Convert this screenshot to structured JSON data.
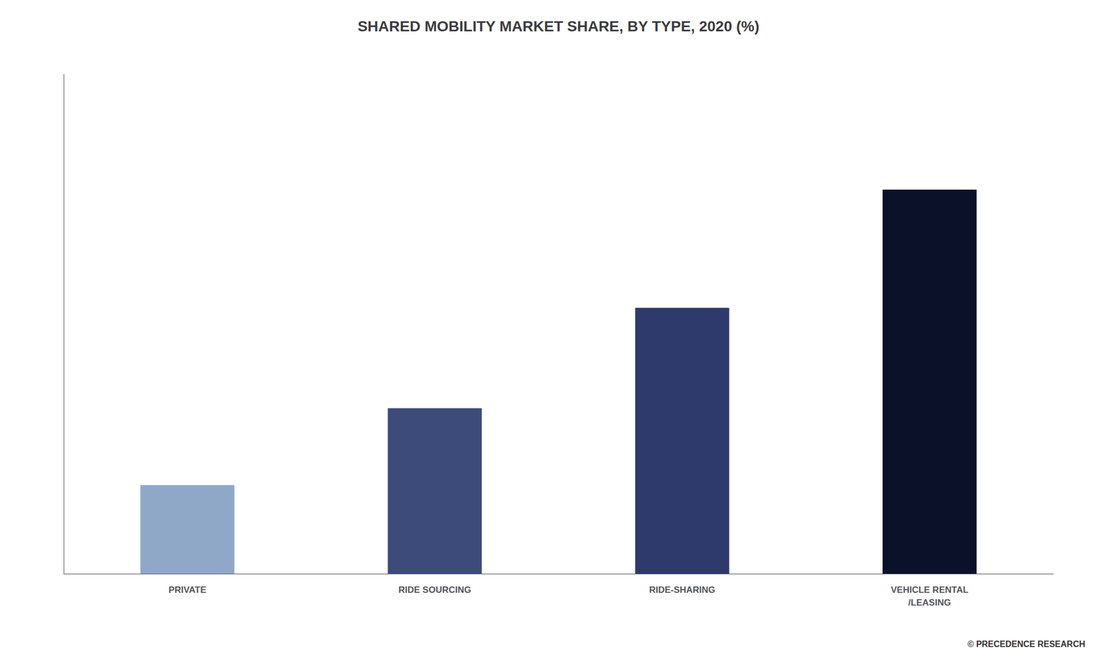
{
  "chart_data": {
    "type": "bar",
    "title": "SHARED MOBILITY MARKET SHARE, BY TYPE, 2020 (%)",
    "categories": [
      "PRIVATE",
      "RIDE SOURCING",
      "RIDE-SHARING",
      "VEHICLE RENTAL\n/LEASING"
    ],
    "values": [
      15,
      28,
      45,
      65
    ],
    "colors": [
      "#8fa8c8",
      "#3d4b7a",
      "#2d3a6b",
      "#0a1128"
    ],
    "ylim": [
      0,
      84.5
    ],
    "grid": false,
    "tick_labels": "x",
    "legend": false,
    "data_labels": false,
    "annotations": [
      "© PRECEDENCE RESEARCH"
    ]
  }
}
